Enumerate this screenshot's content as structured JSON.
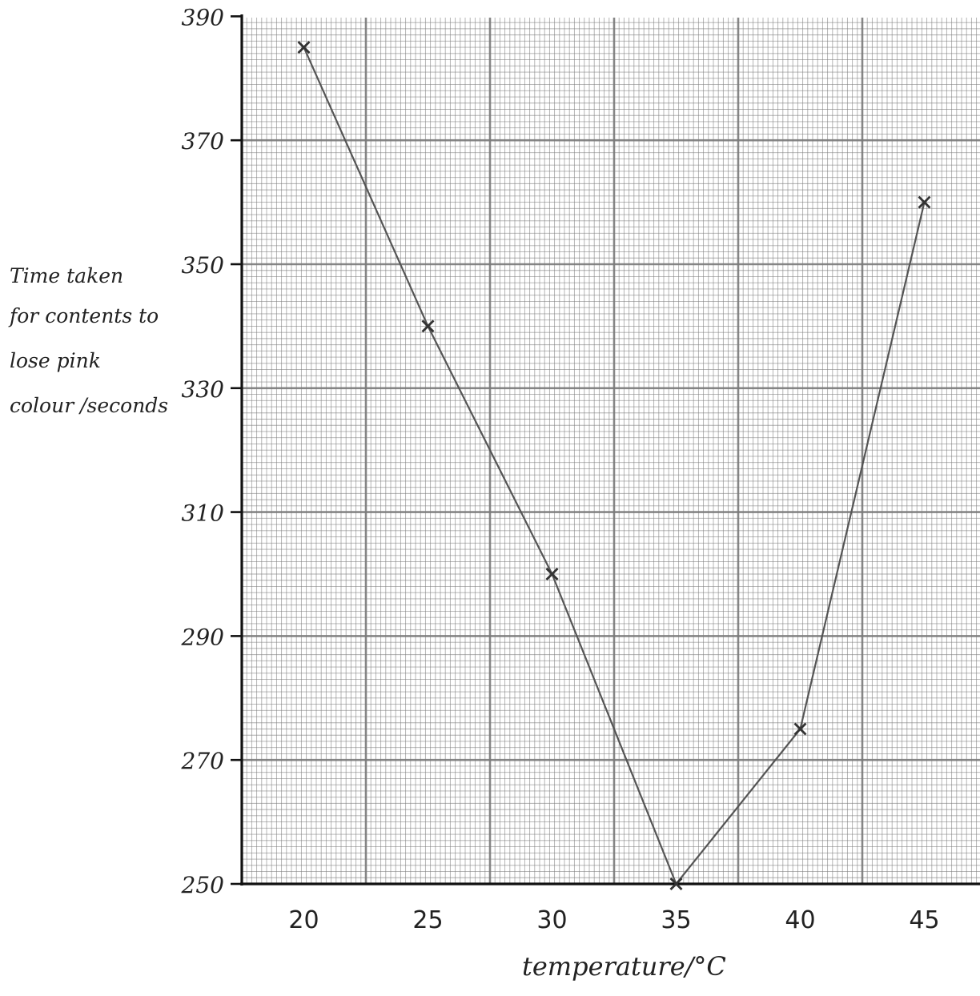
{
  "chart_data": {
    "type": "line",
    "title": "",
    "xlabel": "temperature/°C",
    "ylabel_lines": [
      "Time taken",
      "for contents to",
      "lose pink",
      "colour /seconds"
    ],
    "x": [
      20,
      25,
      30,
      35,
      40,
      45
    ],
    "series": [
      {
        "values": [
          385,
          340,
          300,
          250,
          275,
          360
        ]
      }
    ],
    "x_ticks": [
      "20",
      "25",
      "30",
      "35",
      "40",
      "45"
    ],
    "y_ticks": [
      "390",
      "370",
      "350",
      "330",
      "310",
      "290",
      "270",
      "250"
    ],
    "xlim": [
      17.5,
      47
    ],
    "ylim": [
      250,
      390
    ],
    "grid": true,
    "marker": "x",
    "line_color": "#555555",
    "grid_color": "#7a7a7a"
  }
}
